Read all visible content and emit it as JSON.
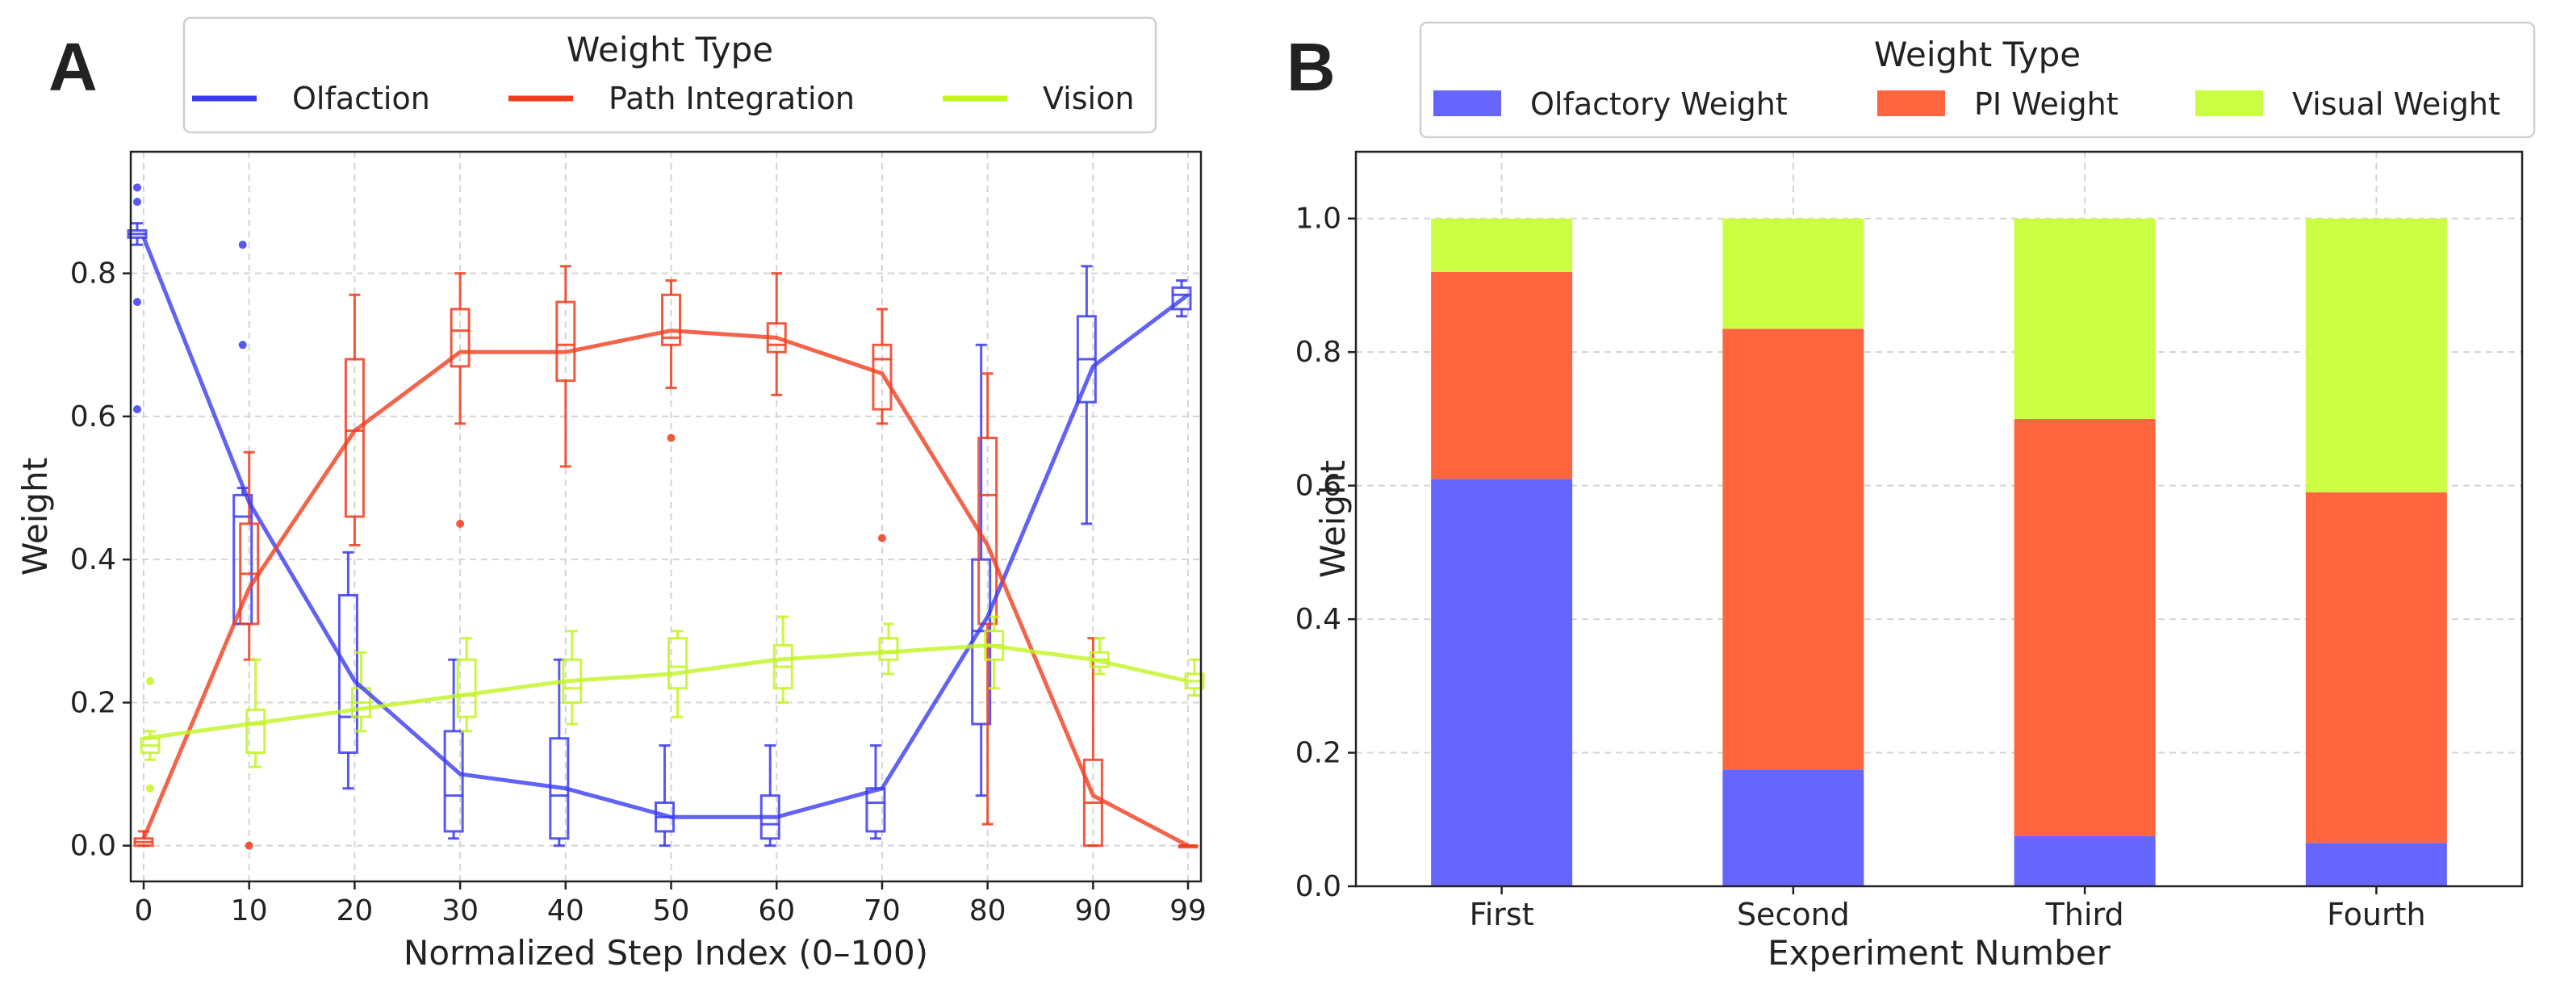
{
  "chart_data": [
    {
      "panel": "A",
      "type": "line",
      "xlabel": "Normalized Step Index (0–100)",
      "ylabel": "Weight",
      "x": [
        0,
        10,
        20,
        30,
        40,
        50,
        60,
        70,
        80,
        90,
        99
      ],
      "x_ticks": [
        0,
        10,
        20,
        30,
        40,
        50,
        60,
        70,
        80,
        90,
        99
      ],
      "y_ticks": [
        0.0,
        0.2,
        0.4,
        0.6,
        0.8
      ],
      "ylim": [
        -0.05,
        0.97
      ],
      "grid": true,
      "legend": {
        "title": "Weight Type",
        "position": "top",
        "columns": 3
      },
      "series": [
        {
          "name": "Olfaction",
          "color": "#3b3bf0",
          "values": [
            0.85,
            0.48,
            0.23,
            0.1,
            0.08,
            0.04,
            0.04,
            0.08,
            0.32,
            0.67,
            0.77
          ],
          "box": [
            {
              "whislo": 0.84,
              "q1": 0.85,
              "med": 0.855,
              "q3": 0.86,
              "whishi": 0.87,
              "fliers": [
                0.92,
                0.9,
                0.76,
                0.61
              ]
            },
            {
              "whislo": 0.31,
              "q1": 0.31,
              "med": 0.46,
              "q3": 0.49,
              "whishi": 0.5,
              "fliers": [
                0.84,
                0.7
              ]
            },
            {
              "whislo": 0.08,
              "q1": 0.13,
              "med": 0.18,
              "q3": 0.35,
              "whishi": 0.41,
              "fliers": []
            },
            {
              "whislo": 0.01,
              "q1": 0.02,
              "med": 0.07,
              "q3": 0.16,
              "whishi": 0.26,
              "fliers": []
            },
            {
              "whislo": 0.0,
              "q1": 0.01,
              "med": 0.07,
              "q3": 0.15,
              "whishi": 0.26,
              "fliers": []
            },
            {
              "whislo": 0.0,
              "q1": 0.02,
              "med": 0.04,
              "q3": 0.06,
              "whishi": 0.14,
              "fliers": []
            },
            {
              "whislo": 0.0,
              "q1": 0.01,
              "med": 0.03,
              "q3": 0.07,
              "whishi": 0.14,
              "fliers": []
            },
            {
              "whislo": 0.01,
              "q1": 0.02,
              "med": 0.06,
              "q3": 0.08,
              "whishi": 0.14,
              "fliers": []
            },
            {
              "whislo": 0.07,
              "q1": 0.17,
              "med": 0.3,
              "q3": 0.4,
              "whishi": 0.7,
              "fliers": []
            },
            {
              "whislo": 0.45,
              "q1": 0.62,
              "med": 0.68,
              "q3": 0.74,
              "whishi": 0.81,
              "fliers": []
            },
            {
              "whislo": 0.74,
              "q1": 0.75,
              "med": 0.77,
              "q3": 0.78,
              "whishi": 0.79,
              "fliers": []
            }
          ]
        },
        {
          "name": "Path Integration",
          "color": "#f03d1e",
          "values": [
            0.01,
            0.36,
            0.58,
            0.69,
            0.69,
            0.72,
            0.71,
            0.66,
            0.42,
            0.07,
            0.0
          ],
          "box": [
            {
              "whislo": 0.0,
              "q1": 0.0,
              "med": 0.005,
              "q3": 0.01,
              "whishi": 0.02,
              "fliers": []
            },
            {
              "whislo": 0.26,
              "q1": 0.31,
              "med": 0.38,
              "q3": 0.45,
              "whishi": 0.55,
              "fliers": [
                0.0
              ]
            },
            {
              "whislo": 0.42,
              "q1": 0.46,
              "med": 0.58,
              "q3": 0.68,
              "whishi": 0.77,
              "fliers": []
            },
            {
              "whislo": 0.59,
              "q1": 0.67,
              "med": 0.72,
              "q3": 0.75,
              "whishi": 0.8,
              "fliers": [
                0.45
              ]
            },
            {
              "whislo": 0.53,
              "q1": 0.65,
              "med": 0.7,
              "q3": 0.76,
              "whishi": 0.81,
              "fliers": []
            },
            {
              "whislo": 0.64,
              "q1": 0.7,
              "med": 0.71,
              "q3": 0.77,
              "whishi": 0.79,
              "fliers": [
                0.57
              ]
            },
            {
              "whislo": 0.63,
              "q1": 0.69,
              "med": 0.7,
              "q3": 0.73,
              "whishi": 0.8,
              "fliers": []
            },
            {
              "whislo": 0.59,
              "q1": 0.61,
              "med": 0.68,
              "q3": 0.7,
              "whishi": 0.75,
              "fliers": [
                0.43
              ]
            },
            {
              "whislo": 0.03,
              "q1": 0.31,
              "med": 0.49,
              "q3": 0.57,
              "whishi": 0.66,
              "fliers": []
            },
            {
              "whislo": 0.0,
              "q1": 0.0,
              "med": 0.06,
              "q3": 0.12,
              "whishi": 0.29,
              "fliers": []
            },
            {
              "whislo": 0.0,
              "q1": 0.0,
              "med": 0.0,
              "q3": 0.0,
              "whishi": 0.0,
              "fliers": []
            }
          ]
        },
        {
          "name": "Vision",
          "color": "#c2f520",
          "values": [
            0.15,
            0.17,
            0.19,
            0.21,
            0.23,
            0.24,
            0.26,
            0.27,
            0.28,
            0.26,
            0.23
          ],
          "box": [
            {
              "whislo": 0.12,
              "q1": 0.13,
              "med": 0.14,
              "q3": 0.15,
              "whishi": 0.16,
              "fliers": [
                0.23,
                0.08
              ]
            },
            {
              "whislo": 0.11,
              "q1": 0.13,
              "med": 0.17,
              "q3": 0.19,
              "whishi": 0.26,
              "fliers": []
            },
            {
              "whislo": 0.16,
              "q1": 0.18,
              "med": 0.2,
              "q3": 0.22,
              "whishi": 0.27,
              "fliers": []
            },
            {
              "whislo": 0.16,
              "q1": 0.18,
              "med": 0.21,
              "q3": 0.26,
              "whishi": 0.29,
              "fliers": []
            },
            {
              "whislo": 0.17,
              "q1": 0.2,
              "med": 0.22,
              "q3": 0.26,
              "whishi": 0.3,
              "fliers": []
            },
            {
              "whislo": 0.18,
              "q1": 0.22,
              "med": 0.25,
              "q3": 0.29,
              "whishi": 0.3,
              "fliers": []
            },
            {
              "whislo": 0.2,
              "q1": 0.22,
              "med": 0.25,
              "q3": 0.28,
              "whishi": 0.32,
              "fliers": []
            },
            {
              "whislo": 0.24,
              "q1": 0.26,
              "med": 0.27,
              "q3": 0.29,
              "whishi": 0.31,
              "fliers": []
            },
            {
              "whislo": 0.22,
              "q1": 0.26,
              "med": 0.28,
              "q3": 0.3,
              "whishi": 0.32,
              "fliers": []
            },
            {
              "whislo": 0.24,
              "q1": 0.25,
              "med": 0.26,
              "q3": 0.27,
              "whishi": 0.29,
              "fliers": []
            },
            {
              "whislo": 0.21,
              "q1": 0.22,
              "med": 0.23,
              "q3": 0.24,
              "whishi": 0.26,
              "fliers": []
            }
          ]
        }
      ]
    },
    {
      "panel": "B",
      "type": "bar",
      "stacked": true,
      "xlabel": "Experiment Number",
      "ylabel": "Weight",
      "categories": [
        "First",
        "Second",
        "Third",
        "Fourth"
      ],
      "y_ticks": [
        0.0,
        0.2,
        0.4,
        0.6,
        0.8,
        1.0
      ],
      "ylim": [
        0,
        1.1
      ],
      "grid": true,
      "legend": {
        "title": "Weight Type",
        "position": "top",
        "columns": 3
      },
      "series": [
        {
          "name": "Olfactory Weight",
          "color": "#6666ff",
          "values": [
            0.61,
            0.175,
            0.075,
            0.065
          ]
        },
        {
          "name": "PI Weight",
          "color": "#ff6640",
          "values": [
            0.31,
            0.66,
            0.625,
            0.525
          ]
        },
        {
          "name": "Visual Weight",
          "color": "#ccff44",
          "values": [
            0.08,
            0.165,
            0.3,
            0.41
          ]
        }
      ]
    }
  ]
}
